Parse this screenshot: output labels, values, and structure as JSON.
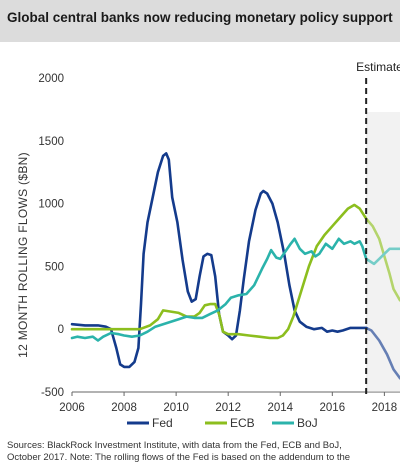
{
  "header": {
    "title": "Global central banks now reducing monetary policy support"
  },
  "sources": {
    "line1": "Sources: BlackRock Investment Institute, with data from the Fed, ECB and BoJ,",
    "line2": "October 2017. Note: The rolling flows of the Fed is based on the addendum to the"
  },
  "colors": {
    "fed": "#143b8c",
    "ecb": "#8cbe1e",
    "boj": "#2bb3ab",
    "estimate_shade": "#ececec"
  },
  "chart_data": {
    "type": "line",
    "title": "Global central banks now reducing monetary policy support",
    "ylabel": "12  MONTH ROLLING FLOWS ($BN)",
    "xlabel": "",
    "xlim": [
      2006,
      2018.6
    ],
    "ylim": [
      -500,
      2000
    ],
    "x_ticks": [
      "2006",
      "2008",
      "2010",
      "2012",
      "2014",
      "2016",
      "2018"
    ],
    "y_ticks": [
      "-500",
      "0",
      "500",
      "1000",
      "1500",
      "2000"
    ],
    "estimate_start": 2017.3,
    "annotation": "Estimate",
    "legend_position": "bottom",
    "series": [
      {
        "name": "Fed",
        "color_key": "fed",
        "points": [
          [
            2006,
            40
          ],
          [
            2006.5,
            30
          ],
          [
            2007,
            30
          ],
          [
            2007.3,
            20
          ],
          [
            2007.5,
            0
          ],
          [
            2007.7,
            -150
          ],
          [
            2007.85,
            -280
          ],
          [
            2008,
            -300
          ],
          [
            2008.2,
            -300
          ],
          [
            2008.4,
            -260
          ],
          [
            2008.55,
            -150
          ],
          [
            2008.65,
            200
          ],
          [
            2008.75,
            600
          ],
          [
            2008.9,
            850
          ],
          [
            2009.1,
            1050
          ],
          [
            2009.3,
            1250
          ],
          [
            2009.5,
            1380
          ],
          [
            2009.62,
            1400
          ],
          [
            2009.72,
            1350
          ],
          [
            2009.85,
            1050
          ],
          [
            2010.05,
            850
          ],
          [
            2010.25,
            550
          ],
          [
            2010.45,
            300
          ],
          [
            2010.6,
            220
          ],
          [
            2010.75,
            240
          ],
          [
            2010.9,
            420
          ],
          [
            2011.05,
            580
          ],
          [
            2011.2,
            600
          ],
          [
            2011.35,
            590
          ],
          [
            2011.5,
            420
          ],
          [
            2011.65,
            120
          ],
          [
            2011.8,
            -20
          ],
          [
            2012,
            -50
          ],
          [
            2012.15,
            -80
          ],
          [
            2012.3,
            -50
          ],
          [
            2012.45,
            150
          ],
          [
            2012.6,
            400
          ],
          [
            2012.8,
            700
          ],
          [
            2013.05,
            950
          ],
          [
            2013.25,
            1080
          ],
          [
            2013.35,
            1100
          ],
          [
            2013.5,
            1080
          ],
          [
            2013.7,
            1000
          ],
          [
            2013.9,
            850
          ],
          [
            2014.15,
            600
          ],
          [
            2014.35,
            350
          ],
          [
            2014.55,
            150
          ],
          [
            2014.75,
            60
          ],
          [
            2015,
            20
          ],
          [
            2015.3,
            0
          ],
          [
            2015.6,
            10
          ],
          [
            2015.8,
            -20
          ],
          [
            2016,
            -10
          ],
          [
            2016.2,
            -20
          ],
          [
            2016.4,
            -10
          ],
          [
            2016.7,
            10
          ],
          [
            2017,
            10
          ],
          [
            2017.3,
            10
          ],
          [
            2017.5,
            -10
          ],
          [
            2017.8,
            -90
          ],
          [
            2018.1,
            -200
          ],
          [
            2018.35,
            -320
          ],
          [
            2018.6,
            -390
          ]
        ]
      },
      {
        "name": "ECB",
        "color_key": "ecb",
        "points": [
          [
            2006,
            0
          ],
          [
            2007,
            0
          ],
          [
            2008,
            0
          ],
          [
            2008.6,
            0
          ],
          [
            2009,
            30
          ],
          [
            2009.3,
            80
          ],
          [
            2009.5,
            150
          ],
          [
            2009.8,
            140
          ],
          [
            2010.1,
            130
          ],
          [
            2010.4,
            100
          ],
          [
            2010.7,
            100
          ],
          [
            2010.9,
            130
          ],
          [
            2011.1,
            190
          ],
          [
            2011.3,
            200
          ],
          [
            2011.5,
            200
          ],
          [
            2011.65,
            120
          ],
          [
            2011.8,
            -20
          ],
          [
            2012,
            -40
          ],
          [
            2012.4,
            -40
          ],
          [
            2012.8,
            -50
          ],
          [
            2013.2,
            -60
          ],
          [
            2013.6,
            -70
          ],
          [
            2013.9,
            -70
          ],
          [
            2014.1,
            -50
          ],
          [
            2014.3,
            0
          ],
          [
            2014.5,
            100
          ],
          [
            2014.8,
            300
          ],
          [
            2015.1,
            500
          ],
          [
            2015.4,
            660
          ],
          [
            2015.7,
            750
          ],
          [
            2016,
            820
          ],
          [
            2016.3,
            890
          ],
          [
            2016.6,
            960
          ],
          [
            2016.85,
            990
          ],
          [
            2017.05,
            960
          ],
          [
            2017.3,
            880
          ],
          [
            2017.55,
            820
          ],
          [
            2017.8,
            720
          ],
          [
            2018,
            580
          ],
          [
            2018.2,
            440
          ],
          [
            2018.35,
            320
          ],
          [
            2018.6,
            230
          ]
        ]
      },
      {
        "name": "BoJ",
        "color_key": "boj",
        "points": [
          [
            2006,
            -70
          ],
          [
            2006.2,
            -60
          ],
          [
            2006.5,
            -70
          ],
          [
            2006.8,
            -60
          ],
          [
            2007,
            -90
          ],
          [
            2007.2,
            -60
          ],
          [
            2007.5,
            -30
          ],
          [
            2007.8,
            -40
          ],
          [
            2008,
            -50
          ],
          [
            2008.3,
            -60
          ],
          [
            2008.6,
            -50
          ],
          [
            2008.9,
            -20
          ],
          [
            2009.2,
            20
          ],
          [
            2009.5,
            40
          ],
          [
            2009.8,
            60
          ],
          [
            2010.1,
            80
          ],
          [
            2010.4,
            100
          ],
          [
            2010.7,
            90
          ],
          [
            2011,
            90
          ],
          [
            2011.3,
            120
          ],
          [
            2011.6,
            150
          ],
          [
            2011.9,
            200
          ],
          [
            2012.1,
            250
          ],
          [
            2012.4,
            270
          ],
          [
            2012.7,
            280
          ],
          [
            2013,
            350
          ],
          [
            2013.3,
            480
          ],
          [
            2013.5,
            560
          ],
          [
            2013.65,
            630
          ],
          [
            2013.85,
            570
          ],
          [
            2014,
            560
          ],
          [
            2014.2,
            620
          ],
          [
            2014.4,
            680
          ],
          [
            2014.55,
            720
          ],
          [
            2014.75,
            640
          ],
          [
            2014.95,
            600
          ],
          [
            2015.2,
            620
          ],
          [
            2015.35,
            580
          ],
          [
            2015.5,
            600
          ],
          [
            2015.75,
            680
          ],
          [
            2016,
            640
          ],
          [
            2016.25,
            720
          ],
          [
            2016.45,
            680
          ],
          [
            2016.7,
            700
          ],
          [
            2016.85,
            680
          ],
          [
            2017.05,
            700
          ],
          [
            2017.15,
            660
          ],
          [
            2017.3,
            560
          ],
          [
            2017.45,
            540
          ],
          [
            2017.6,
            520
          ],
          [
            2017.8,
            560
          ],
          [
            2018,
            600
          ],
          [
            2018.2,
            640
          ],
          [
            2018.6,
            640
          ]
        ]
      }
    ]
  }
}
